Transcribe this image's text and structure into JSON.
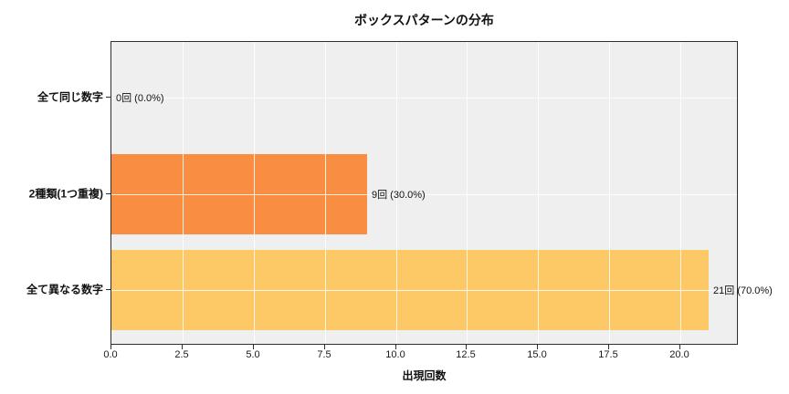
{
  "chart_data": {
    "type": "bar",
    "orientation": "horizontal",
    "title": "ボックスパターンの分布",
    "xlabel": "出現回数",
    "ylabel": "",
    "categories": [
      "全て同じ数字",
      "2種類(1つ重複)",
      "全て異なる数字"
    ],
    "values": [
      0,
      9,
      21
    ],
    "bar_labels": [
      "0回 (0.0%)",
      "9回 (30.0%)",
      "21回 (70.0%)"
    ],
    "bar_colors": [
      null,
      "#f98e42",
      "#fdc967"
    ],
    "xticks": [
      0.0,
      2.5,
      5.0,
      7.5,
      10.0,
      12.5,
      15.0,
      17.5,
      20.0
    ],
    "xtick_labels": [
      "0.0",
      "2.5",
      "5.0",
      "7.5",
      "10.0",
      "12.5",
      "15.0",
      "17.5",
      "20.0"
    ],
    "xlim": [
      0,
      22.05
    ],
    "grid": true,
    "legend": false,
    "plot_bg": "#efefef",
    "grid_color": "#ffffff",
    "spine_color": "#2e2e2e"
  }
}
